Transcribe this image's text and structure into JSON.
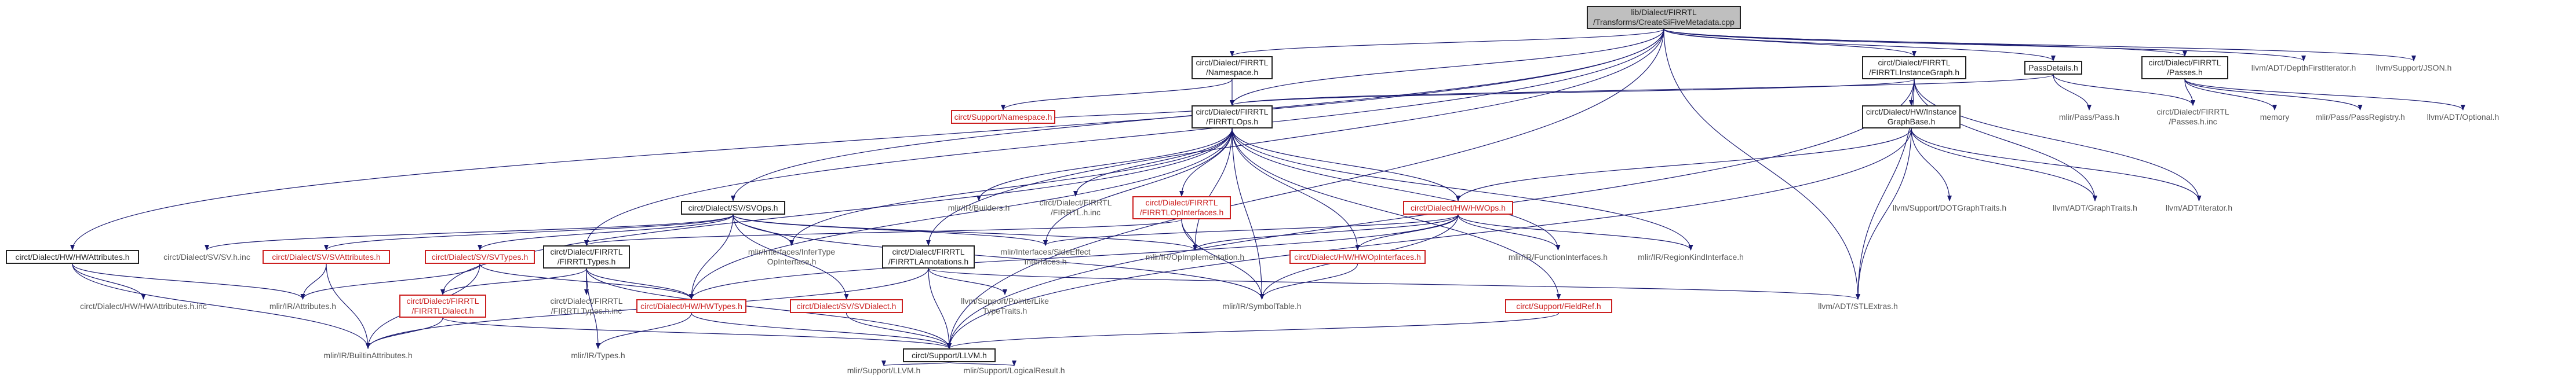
{
  "diagram": {
    "colors": {
      "edge": "#191970",
      "border_documented": "#222222",
      "border_undocumented": "#cc2020",
      "border_external": "#c8c8c8",
      "root_fill": "#bfbfbf"
    },
    "nodes": [
      {
        "id": "root",
        "kind": "root",
        "lines": [
          "lib/Dialect/FIRRTL",
          "/Transforms/CreateSiFiveMetadata.cpp"
        ]
      },
      {
        "id": "namespace",
        "kind": "black",
        "lines": [
          "circt/Dialect/FIRRTL",
          "/Namespace.h"
        ]
      },
      {
        "id": "instgraph",
        "kind": "black",
        "lines": [
          "circt/Dialect/FIRRTL",
          "/FIRRTLInstanceGraph.h"
        ]
      },
      {
        "id": "passdetails",
        "kind": "black",
        "lines": [
          "PassDetails.h"
        ]
      },
      {
        "id": "passes",
        "kind": "black",
        "lines": [
          "circt/Dialect/FIRRTL",
          "/Passes.h"
        ]
      },
      {
        "id": "depthfirst",
        "kind": "plain",
        "lines": [
          "llvm/ADT/DepthFirstIterator.h"
        ]
      },
      {
        "id": "json",
        "kind": "plain",
        "lines": [
          "llvm/Support/JSON.h"
        ]
      },
      {
        "id": "supnamespace",
        "kind": "red",
        "lines": [
          "circt/Support/Namespace.h"
        ]
      },
      {
        "id": "firrtlops",
        "kind": "black",
        "lines": [
          "circt/Dialect/FIRRTL",
          "/FIRRTLOps.h"
        ]
      },
      {
        "id": "igbase",
        "kind": "black",
        "lines": [
          "circt/Dialect/HW/Instance",
          "GraphBase.h"
        ]
      },
      {
        "id": "mlirpass",
        "kind": "plain",
        "lines": [
          "mlir/Pass/Pass.h"
        ]
      },
      {
        "id": "passesinc",
        "kind": "plain",
        "lines": [
          "circt/Dialect/FIRRTL",
          "/Passes.h.inc"
        ]
      },
      {
        "id": "memory",
        "kind": "plain",
        "lines": [
          "memory"
        ]
      },
      {
        "id": "passregistry",
        "kind": "plain",
        "lines": [
          "mlir/Pass/PassRegistry.h"
        ]
      },
      {
        "id": "optional",
        "kind": "plain",
        "lines": [
          "llvm/ADT/Optional.h"
        ]
      },
      {
        "id": "hwattrs",
        "kind": "black",
        "lines": [
          "circt/Dialect/HW/HWAttributes.h"
        ]
      },
      {
        "id": "svops",
        "kind": "black",
        "lines": [
          "circt/Dialect/SV/SVOps.h"
        ]
      },
      {
        "id": "irbuilders",
        "kind": "plain",
        "lines": [
          "mlir/IR/Builders.h"
        ]
      },
      {
        "id": "firrtlhinc",
        "kind": "plain",
        "lines": [
          "circt/Dialect/FIRRTL",
          "/FIRRTL.h.inc"
        ]
      },
      {
        "id": "opinterfaces",
        "kind": "red",
        "lines": [
          "circt/Dialect/FIRRTL",
          "/FIRRTLOpInterfaces.h"
        ]
      },
      {
        "id": "hwops",
        "kind": "red",
        "lines": [
          "circt/Dialect/HW/HWOps.h"
        ]
      },
      {
        "id": "dotgraph",
        "kind": "plain",
        "lines": [
          "llvm/Support/DOTGraphTraits.h"
        ]
      },
      {
        "id": "graphtraits",
        "kind": "plain",
        "lines": [
          "llvm/ADT/GraphTraits.h"
        ]
      },
      {
        "id": "iterator",
        "kind": "plain",
        "lines": [
          "llvm/ADT/iterator.h"
        ]
      },
      {
        "id": "svhinc",
        "kind": "plain",
        "lines": [
          "circt/Dialect/SV/SV.h.inc"
        ]
      },
      {
        "id": "svattrs",
        "kind": "red",
        "lines": [
          "circt/Dialect/SV/SVAttributes.h"
        ]
      },
      {
        "id": "svtypes",
        "kind": "red",
        "lines": [
          "circt/Dialect/SV/SVTypes.h"
        ]
      },
      {
        "id": "firrtltypes",
        "kind": "black",
        "lines": [
          "circt/Dialect/FIRRTL",
          "/FIRRTLTypes.h"
        ]
      },
      {
        "id": "infertype",
        "kind": "plain",
        "lines": [
          "mlir/Interfaces/InferType",
          "OpInterface.h"
        ]
      },
      {
        "id": "annotations",
        "kind": "black",
        "lines": [
          "circt/Dialect/FIRRTL",
          "/FIRRTLAnnotations.h"
        ]
      },
      {
        "id": "sideeffect",
        "kind": "plain",
        "lines": [
          "mlir/Interfaces/SideEffect",
          "Interfaces.h"
        ]
      },
      {
        "id": "opimpl",
        "kind": "plain",
        "lines": [
          "mlir/IR/OpImplementation.h"
        ]
      },
      {
        "id": "hwopinterfaces",
        "kind": "red",
        "lines": [
          "circt/Dialect/HW/HWOpInterfaces.h"
        ]
      },
      {
        "id": "funcinterfaces",
        "kind": "plain",
        "lines": [
          "mlir/IR/FunctionInterfaces.h"
        ]
      },
      {
        "id": "regionkind",
        "kind": "plain",
        "lines": [
          "mlir/IR/RegionKindInterface.h"
        ]
      },
      {
        "id": "stlextras",
        "kind": "plain",
        "lines": [
          "llvm/ADT/STLExtras.h"
        ]
      },
      {
        "id": "hwattrsinc",
        "kind": "plain",
        "lines": [
          "circt/Dialect/HW/HWAttributes.h.inc"
        ]
      },
      {
        "id": "irattrs",
        "kind": "plain",
        "lines": [
          "mlir/IR/Attributes.h"
        ]
      },
      {
        "id": "firrtldialect",
        "kind": "red",
        "lines": [
          "circt/Dialect/FIRRTL",
          "/FIRRTLDialect.h"
        ]
      },
      {
        "id": "firrtltypesinc",
        "kind": "plain",
        "lines": [
          "circt/Dialect/FIRRTL",
          "/FIRRTLTypes.h.inc"
        ]
      },
      {
        "id": "hwtypes",
        "kind": "red",
        "lines": [
          "circt/Dialect/HW/HWTypes.h"
        ]
      },
      {
        "id": "svdialect",
        "kind": "red",
        "lines": [
          "circt/Dialect/SV/SVDialect.h"
        ]
      },
      {
        "id": "pointerlike",
        "kind": "plain",
        "lines": [
          "llvm/Support/PointerLike",
          "TypeTraits.h"
        ]
      },
      {
        "id": "symboltable",
        "kind": "plain",
        "lines": [
          "mlir/IR/SymbolTable.h"
        ]
      },
      {
        "id": "fieldref",
        "kind": "red",
        "lines": [
          "circt/Support/FieldRef.h"
        ]
      },
      {
        "id": "builtinattrs",
        "kind": "plain",
        "lines": [
          "mlir/IR/BuiltinAttributes.h"
        ]
      },
      {
        "id": "irtypes",
        "kind": "plain",
        "lines": [
          "mlir/IR/Types.h"
        ]
      },
      {
        "id": "llvmh",
        "kind": "black",
        "lines": [
          "circt/Support/LLVM.h"
        ]
      },
      {
        "id": "mlirllvm",
        "kind": "plain",
        "lines": [
          "mlir/Support/LLVM.h"
        ]
      },
      {
        "id": "logicalresult",
        "kind": "plain",
        "lines": [
          "mlir/Support/LogicalResult.h"
        ]
      }
    ],
    "edges": [
      [
        "root",
        "namespace"
      ],
      [
        "root",
        "instgraph"
      ],
      [
        "root",
        "passdetails"
      ],
      [
        "root",
        "passes"
      ],
      [
        "root",
        "depthfirst"
      ],
      [
        "root",
        "json"
      ],
      [
        "root",
        "firrtlops"
      ],
      [
        "root",
        "hwattrs"
      ],
      [
        "root",
        "svops"
      ],
      [
        "root",
        "firrtltypes"
      ],
      [
        "root",
        "annotations"
      ],
      [
        "root",
        "stlextras"
      ],
      [
        "root",
        "llvmh"
      ],
      [
        "namespace",
        "supnamespace"
      ],
      [
        "namespace",
        "firrtlops"
      ],
      [
        "instgraph",
        "firrtlops"
      ],
      [
        "instgraph",
        "igbase"
      ],
      [
        "instgraph",
        "stlextras"
      ],
      [
        "instgraph",
        "graphtraits"
      ],
      [
        "instgraph",
        "iterator"
      ],
      [
        "instgraph",
        "llvmh"
      ],
      [
        "passdetails",
        "firrtlops"
      ],
      [
        "passdetails",
        "mlirpass"
      ],
      [
        "passdetails",
        "passesinc"
      ],
      [
        "passes",
        "memory"
      ],
      [
        "passes",
        "passregistry"
      ],
      [
        "passes",
        "optional"
      ],
      [
        "passes",
        "passesinc"
      ],
      [
        "supnamespace",
        "firrtlops"
      ],
      [
        "firrtlops",
        "irbuilders"
      ],
      [
        "firrtlops",
        "firrtlhinc"
      ],
      [
        "firrtlops",
        "opinterfaces"
      ],
      [
        "firrtlops",
        "hwops"
      ],
      [
        "firrtlops",
        "funcinterfaces"
      ],
      [
        "firrtlops",
        "regionkind"
      ],
      [
        "firrtlops",
        "infertype"
      ],
      [
        "firrtlops",
        "sideeffect"
      ],
      [
        "firrtlops",
        "symboltable"
      ],
      [
        "firrtlops",
        "fieldref"
      ],
      [
        "firrtlops",
        "firrtldialect"
      ],
      [
        "firrtlops",
        "hwtypes"
      ],
      [
        "firrtlops",
        "opimpl"
      ],
      [
        "firrtlops",
        "hwopinterfaces"
      ],
      [
        "igbase",
        "dotgraph"
      ],
      [
        "igbase",
        "graphtraits"
      ],
      [
        "igbase",
        "iterator"
      ],
      [
        "igbase",
        "hwops"
      ],
      [
        "igbase",
        "stlextras"
      ],
      [
        "igbase",
        "llvmh"
      ],
      [
        "svops",
        "svhinc"
      ],
      [
        "svops",
        "svattrs"
      ],
      [
        "svops",
        "svtypes"
      ],
      [
        "svops",
        "svdialect"
      ],
      [
        "svops",
        "infertype"
      ],
      [
        "svops",
        "sideeffect"
      ],
      [
        "svops",
        "opimpl"
      ],
      [
        "svops",
        "hwtypes"
      ],
      [
        "svops",
        "symboltable"
      ],
      [
        "opinterfaces",
        "firrtltypes"
      ],
      [
        "opinterfaces",
        "symboltable"
      ],
      [
        "opinterfaces",
        "opimpl"
      ],
      [
        "hwops",
        "hwopinterfaces"
      ],
      [
        "hwops",
        "funcinterfaces"
      ],
      [
        "hwops",
        "regionkind"
      ],
      [
        "hwops",
        "sideeffect"
      ],
      [
        "hwops",
        "opimpl"
      ],
      [
        "hwops",
        "symboltable"
      ],
      [
        "hwops",
        "hwtypes"
      ],
      [
        "hwattrs",
        "hwattrsinc"
      ],
      [
        "hwattrs",
        "irattrs"
      ],
      [
        "hwattrs",
        "builtinattrs"
      ],
      [
        "svattrs",
        "irattrs"
      ],
      [
        "svattrs",
        "builtinattrs"
      ],
      [
        "svtypes",
        "irattrs"
      ],
      [
        "svtypes",
        "hwtypes"
      ],
      [
        "svtypes",
        "builtinattrs"
      ],
      [
        "firrtltypes",
        "firrtldialect"
      ],
      [
        "firrtltypes",
        "firrtltypesinc"
      ],
      [
        "firrtltypes",
        "irtypes"
      ],
      [
        "firrtltypes",
        "hwtypes"
      ],
      [
        "firrtltypes",
        "llvmh"
      ],
      [
        "annotations",
        "pointerlike"
      ],
      [
        "annotations",
        "llvmh"
      ],
      [
        "annotations",
        "stlextras"
      ],
      [
        "annotations",
        "builtinattrs"
      ],
      [
        "hwopinterfaces",
        "symboltable"
      ],
      [
        "firrtldialect",
        "builtinattrs"
      ],
      [
        "firrtldialect",
        "llvmh"
      ],
      [
        "hwtypes",
        "irtypes"
      ],
      [
        "hwtypes",
        "llvmh"
      ],
      [
        "svdialect",
        "llvmh"
      ],
      [
        "fieldref",
        "llvmh"
      ],
      [
        "llvmh",
        "mlirllvm"
      ],
      [
        "llvmh",
        "logicalresult"
      ]
    ]
  }
}
